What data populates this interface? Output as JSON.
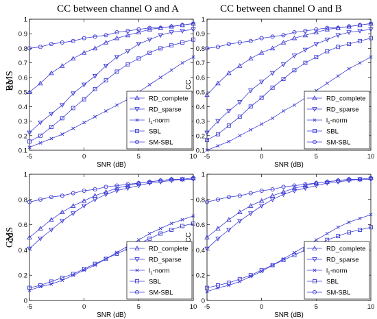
{
  "figure": {
    "col_titles": [
      "CC between channel O and A",
      "CC between channel O and B"
    ],
    "row_labels": [
      "RMS",
      "GMS"
    ]
  },
  "colors": {
    "series": "#3b3bd6",
    "axes": "#000000"
  },
  "chart_data": [
    {
      "type": "line",
      "title": "CC between channel O and A",
      "row_label": "RMS",
      "xlabel": "SNR (dB)",
      "ylabel": "CC",
      "xlim": [
        -5,
        10
      ],
      "ylim": [
        0.1,
        1
      ],
      "xticks": [
        -5,
        0,
        5,
        10
      ],
      "yticks": [
        0.1,
        0.2,
        0.3,
        0.4,
        0.5,
        0.6,
        0.7,
        0.8,
        0.9,
        1
      ],
      "ytick_labels": [
        "0.1",
        "0.2",
        "0.3",
        "0.4",
        "0.5",
        "0.6",
        "0.7",
        "0.8",
        "0.9",
        "1"
      ],
      "grid": false,
      "legend": "bottom-right",
      "x": [
        -5,
        -4,
        -3,
        -2,
        -1,
        0,
        1,
        2,
        3,
        4,
        5,
        6,
        7,
        8,
        9,
        10
      ],
      "series": [
        {
          "name": "RD_complete",
          "marker": "triangle-up",
          "values": [
            0.5,
            0.56,
            0.63,
            0.68,
            0.73,
            0.77,
            0.8,
            0.84,
            0.87,
            0.89,
            0.91,
            0.93,
            0.94,
            0.95,
            0.96,
            0.97
          ]
        },
        {
          "name": "RD_sparse",
          "marker": "triangle-down",
          "values": [
            0.22,
            0.29,
            0.35,
            0.41,
            0.49,
            0.55,
            0.61,
            0.68,
            0.74,
            0.78,
            0.83,
            0.86,
            0.89,
            0.91,
            0.92,
            0.93
          ]
        },
        {
          "name": "l1-norm",
          "marker": "x",
          "values": [
            0.12,
            0.15,
            0.18,
            0.21,
            0.25,
            0.29,
            0.33,
            0.37,
            0.41,
            0.45,
            0.5,
            0.55,
            0.6,
            0.65,
            0.7,
            0.74
          ]
        },
        {
          "name": "SBL",
          "marker": "square",
          "values": [
            0.16,
            0.2,
            0.26,
            0.32,
            0.39,
            0.45,
            0.52,
            0.58,
            0.64,
            0.69,
            0.73,
            0.77,
            0.8,
            0.82,
            0.84,
            0.86
          ]
        },
        {
          "name": "SM-SBL",
          "marker": "circle",
          "values": [
            0.8,
            0.81,
            0.83,
            0.84,
            0.85,
            0.87,
            0.88,
            0.89,
            0.91,
            0.92,
            0.93,
            0.94,
            0.94,
            0.95,
            0.96,
            0.97
          ]
        }
      ],
      "legend_labels": [
        "RD_complete",
        "RD_sparse",
        "l",
        "1",
        "-norm",
        "SBL",
        "SM-SBL"
      ]
    },
    {
      "type": "line",
      "title": "CC between channel O and B",
      "row_label": "RMS",
      "xlabel": "SNR (dB)",
      "ylabel": "CC",
      "xlim": [
        -5,
        10
      ],
      "ylim": [
        0.1,
        1
      ],
      "xticks": [
        -5,
        0,
        5,
        10
      ],
      "yticks": [
        0.1,
        0.2,
        0.3,
        0.4,
        0.5,
        0.6,
        0.7,
        0.8,
        0.9,
        1
      ],
      "ytick_labels": [
        "0.1",
        "0.2",
        "0.3",
        "0.4",
        "0.5",
        "0.6",
        "0.7",
        "0.8",
        "0.9",
        "1"
      ],
      "grid": false,
      "legend": "bottom-right",
      "x": [
        -5,
        -4,
        -3,
        -2,
        -1,
        0,
        1,
        2,
        3,
        4,
        5,
        6,
        7,
        8,
        9,
        10
      ],
      "series": [
        {
          "name": "RD_complete",
          "marker": "triangle-up",
          "values": [
            0.48,
            0.56,
            0.63,
            0.68,
            0.73,
            0.77,
            0.8,
            0.84,
            0.87,
            0.89,
            0.91,
            0.93,
            0.94,
            0.95,
            0.96,
            0.97
          ]
        },
        {
          "name": "RD_sparse",
          "marker": "triangle-down",
          "values": [
            0.22,
            0.3,
            0.37,
            0.43,
            0.51,
            0.57,
            0.63,
            0.69,
            0.75,
            0.79,
            0.83,
            0.86,
            0.89,
            0.91,
            0.92,
            0.93
          ]
        },
        {
          "name": "l1-norm",
          "marker": "x",
          "values": [
            0.1,
            0.13,
            0.16,
            0.2,
            0.24,
            0.28,
            0.32,
            0.37,
            0.41,
            0.46,
            0.51,
            0.56,
            0.61,
            0.66,
            0.7,
            0.74
          ]
        },
        {
          "name": "SBL",
          "marker": "square",
          "values": [
            0.17,
            0.21,
            0.27,
            0.33,
            0.4,
            0.46,
            0.53,
            0.59,
            0.65,
            0.7,
            0.74,
            0.78,
            0.81,
            0.83,
            0.85,
            0.87
          ]
        },
        {
          "name": "SM-SBL",
          "marker": "circle",
          "values": [
            0.8,
            0.81,
            0.83,
            0.84,
            0.85,
            0.87,
            0.88,
            0.89,
            0.91,
            0.92,
            0.93,
            0.94,
            0.94,
            0.95,
            0.96,
            0.97
          ]
        }
      ],
      "legend_labels": [
        "RD_complete",
        "RD_sparse",
        "l",
        "1",
        "-norm",
        "SBL",
        "SM-SBL"
      ]
    },
    {
      "type": "line",
      "title": "",
      "row_label": "GMS",
      "xlabel": "SNR (dB)",
      "ylabel": "CC",
      "xlim": [
        -5,
        10
      ],
      "ylim": [
        0,
        1
      ],
      "xticks": [
        -5,
        0,
        5,
        10
      ],
      "yticks": [
        0,
        0.2,
        0.4,
        0.6,
        0.8,
        1
      ],
      "ytick_labels": [
        "0",
        "0.2",
        "0.4",
        "0.6",
        "0.8",
        "1"
      ],
      "grid": false,
      "legend": "bottom-right",
      "x": [
        -5,
        -4,
        -3,
        -2,
        -1,
        0,
        1,
        2,
        3,
        4,
        5,
        6,
        7,
        8,
        9,
        10
      ],
      "series": [
        {
          "name": "RD_complete",
          "marker": "triangle-up",
          "values": [
            0.5,
            0.57,
            0.64,
            0.7,
            0.75,
            0.79,
            0.83,
            0.86,
            0.89,
            0.91,
            0.93,
            0.94,
            0.95,
            0.96,
            0.96,
            0.97
          ]
        },
        {
          "name": "RD_sparse",
          "marker": "triangle-down",
          "values": [
            0.41,
            0.49,
            0.56,
            0.63,
            0.69,
            0.75,
            0.8,
            0.84,
            0.87,
            0.89,
            0.91,
            0.93,
            0.94,
            0.95,
            0.96,
            0.96
          ]
        },
        {
          "name": "l1-norm",
          "marker": "x",
          "values": [
            0.08,
            0.11,
            0.13,
            0.16,
            0.2,
            0.24,
            0.28,
            0.33,
            0.38,
            0.43,
            0.48,
            0.53,
            0.57,
            0.61,
            0.64,
            0.67
          ]
        },
        {
          "name": "SBL",
          "marker": "square",
          "values": [
            0.1,
            0.12,
            0.15,
            0.18,
            0.21,
            0.25,
            0.29,
            0.33,
            0.37,
            0.41,
            0.45,
            0.49,
            0.53,
            0.56,
            0.59,
            0.61
          ]
        },
        {
          "name": "SM-SBL",
          "marker": "circle",
          "values": [
            0.78,
            0.8,
            0.82,
            0.83,
            0.85,
            0.87,
            0.88,
            0.9,
            0.91,
            0.92,
            0.93,
            0.94,
            0.95,
            0.96,
            0.96,
            0.97
          ]
        }
      ],
      "legend_labels": [
        "RD_complete",
        "RD_sparse",
        "l",
        "1",
        "-norm",
        "SBL",
        "SM-SBL"
      ]
    },
    {
      "type": "line",
      "title": "",
      "row_label": "GMS",
      "xlabel": "SNR (dB)",
      "ylabel": "CC",
      "xlim": [
        -5,
        10
      ],
      "ylim": [
        0,
        1
      ],
      "xticks": [
        -5,
        0,
        5,
        10
      ],
      "yticks": [
        0,
        0.2,
        0.4,
        0.6,
        0.8,
        1
      ],
      "ytick_labels": [
        "0",
        "0.2",
        "0.4",
        "0.6",
        "0.8",
        "1"
      ],
      "grid": false,
      "legend": "bottom-right",
      "x": [
        -5,
        -4,
        -3,
        -2,
        -1,
        0,
        1,
        2,
        3,
        4,
        5,
        6,
        7,
        8,
        9,
        10
      ],
      "series": [
        {
          "name": "RD_complete",
          "marker": "triangle-up",
          "values": [
            0.5,
            0.57,
            0.64,
            0.7,
            0.75,
            0.79,
            0.83,
            0.86,
            0.89,
            0.91,
            0.93,
            0.94,
            0.95,
            0.96,
            0.96,
            0.97
          ]
        },
        {
          "name": "RD_sparse",
          "marker": "triangle-down",
          "values": [
            0.41,
            0.49,
            0.56,
            0.63,
            0.69,
            0.75,
            0.8,
            0.84,
            0.87,
            0.89,
            0.91,
            0.93,
            0.94,
            0.95,
            0.96,
            0.96
          ]
        },
        {
          "name": "l1-norm",
          "marker": "x",
          "values": [
            0.07,
            0.1,
            0.12,
            0.15,
            0.19,
            0.23,
            0.28,
            0.33,
            0.38,
            0.43,
            0.48,
            0.53,
            0.58,
            0.62,
            0.65,
            0.68
          ]
        },
        {
          "name": "SBL",
          "marker": "square",
          "values": [
            0.1,
            0.12,
            0.14,
            0.17,
            0.2,
            0.24,
            0.28,
            0.32,
            0.36,
            0.4,
            0.44,
            0.48,
            0.51,
            0.54,
            0.56,
            0.58
          ]
        },
        {
          "name": "SM-SBL",
          "marker": "circle",
          "values": [
            0.78,
            0.8,
            0.82,
            0.83,
            0.85,
            0.87,
            0.88,
            0.9,
            0.91,
            0.92,
            0.93,
            0.94,
            0.95,
            0.96,
            0.96,
            0.97
          ]
        }
      ],
      "legend_labels": [
        "RD_complete",
        "RD_sparse",
        "l",
        "1",
        "-norm",
        "SBL",
        "SM-SBL"
      ]
    }
  ]
}
